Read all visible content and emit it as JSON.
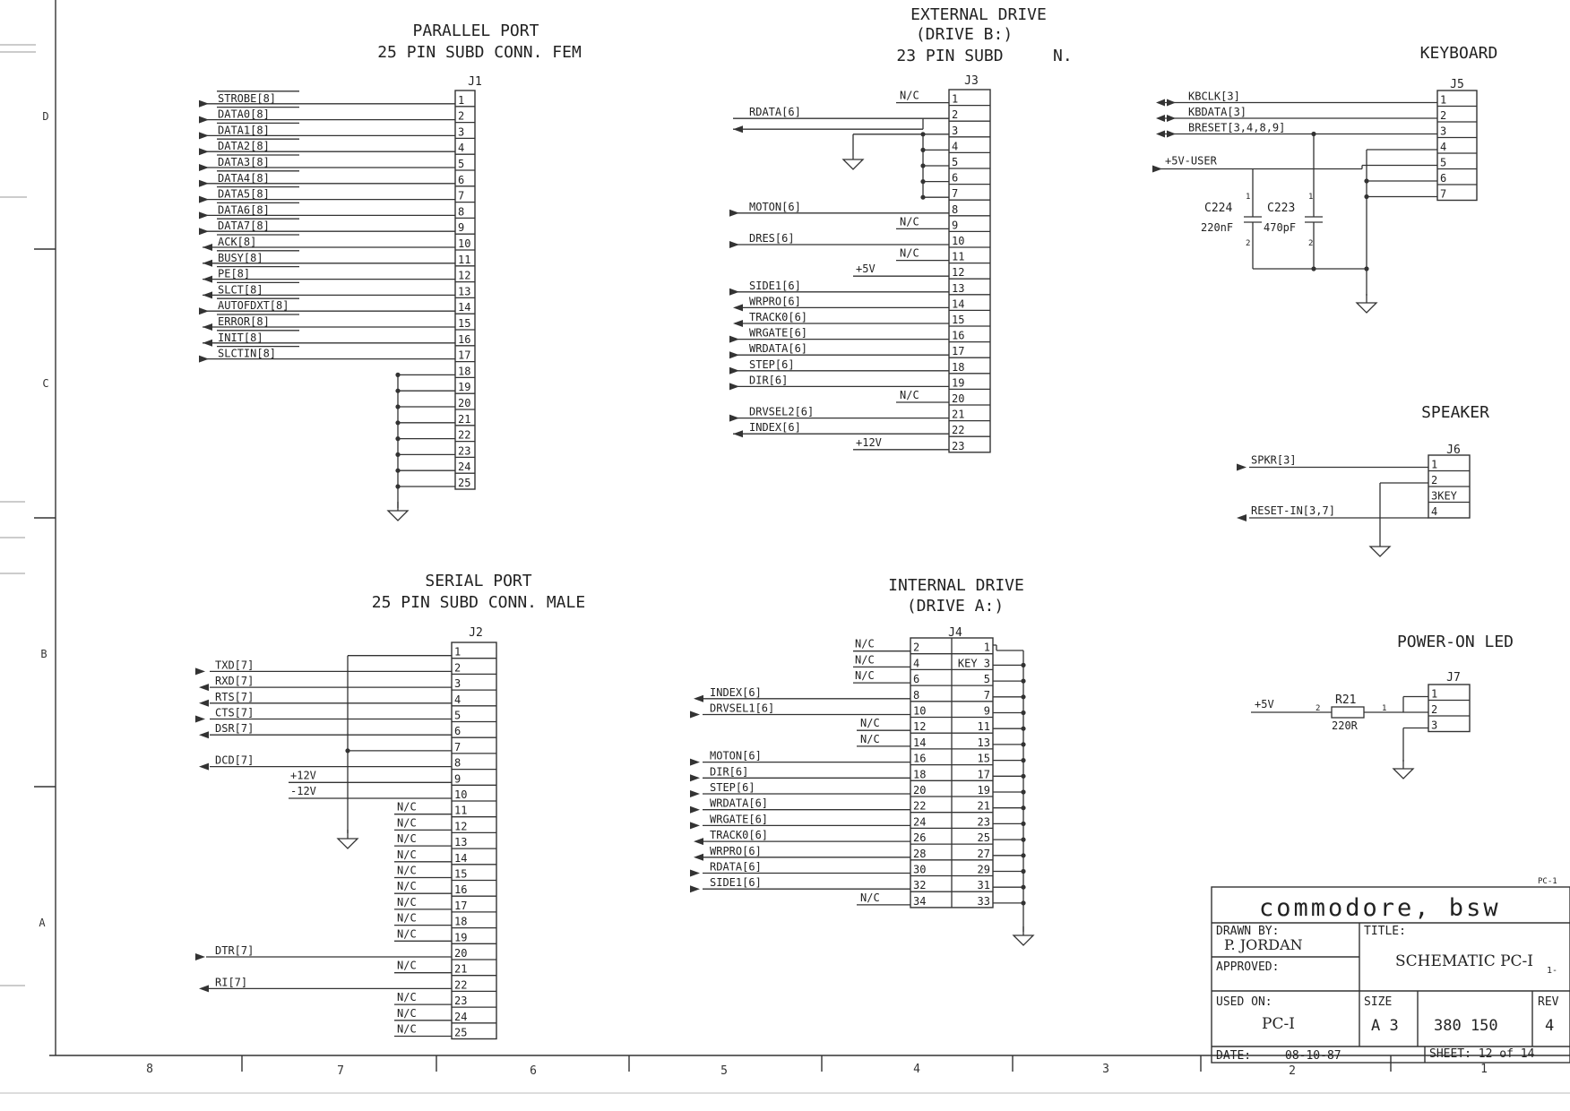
{
  "parallel": {
    "title1": "PARALLEL PORT",
    "title2": "25 PIN SUBD CONN. FEM",
    "ref": "J1",
    "signals": [
      "STROBE[8]",
      "DATA0[8]",
      "DATA1[8]",
      "DATA2[8]",
      "DATA3[8]",
      "DATA4[8]",
      "DATA5[8]",
      "DATA6[8]",
      "DATA7[8]",
      "ACK[8]",
      "BUSY[8]",
      "PE[8]",
      "SLCT[8]",
      "AUTOFDXT[8]",
      "ERROR[8]",
      "INIT[8]",
      "SLCTIN[8]"
    ],
    "pins": [
      "1",
      "2",
      "3",
      "4",
      "5",
      "6",
      "7",
      "8",
      "9",
      "10",
      "11",
      "12",
      "13",
      "14",
      "15",
      "16",
      "17",
      "18",
      "19",
      "20",
      "21",
      "22",
      "23",
      "24",
      "25"
    ]
  },
  "external": {
    "title1": "EXTERNAL DRIVE",
    "title2": "(DRIVE B:)",
    "title3": "23 PIN SUBD",
    "title3b": "N.",
    "ref": "J3",
    "pins": [
      "1",
      "2",
      "3",
      "4",
      "5",
      "6",
      "7",
      "8",
      "9",
      "10",
      "11",
      "12",
      "13",
      "14",
      "15",
      "16",
      "17",
      "18",
      "19",
      "20",
      "21",
      "22",
      "23"
    ],
    "nc": "N/C",
    "p5v": "+5V",
    "p12v": "+12V",
    "signals": [
      {
        "pin": 2,
        "label": "RDATA[6]"
      },
      {
        "pin": 8,
        "label": "MOTON[6]"
      },
      {
        "pin": 10,
        "label": "DRES[6]"
      },
      {
        "pin": 13,
        "label": "SIDE1[6]"
      },
      {
        "pin": 14,
        "label": "WRPRO[6]"
      },
      {
        "pin": 15,
        "label": "TRACK0[6]"
      },
      {
        "pin": 16,
        "label": "WRGATE[6]"
      },
      {
        "pin": 17,
        "label": "WRDATA[6]"
      },
      {
        "pin": 18,
        "label": "STEP[6]"
      },
      {
        "pin": 19,
        "label": "DIR[6]"
      },
      {
        "pin": 21,
        "label": "DRVSEL2[6]"
      },
      {
        "pin": 22,
        "label": "INDEX[6]"
      }
    ]
  },
  "keyboard": {
    "title": "KEYBOARD",
    "ref": "J5",
    "pins": [
      "1",
      "2",
      "3",
      "4",
      "5",
      "6",
      "7"
    ],
    "kbclk": "KBCLK[3]",
    "kbdata": "KBDATA[3]",
    "breset": "BRESET[3,4,8,9]",
    "usr": "+5V-USER",
    "c1_ref": "C224",
    "c1_val": "220nF",
    "c2_ref": "C223",
    "c2_val": "470pF",
    "pin_a": "1",
    "pin_b": "2"
  },
  "speaker": {
    "title": "SPEAKER",
    "ref": "J6",
    "pins": [
      "1",
      "2",
      "3KEY",
      "4"
    ],
    "spkr": "SPKR[3]",
    "reset": "RESET-IN[3,7]"
  },
  "serial": {
    "title1": "SERIAL PORT",
    "title2": "25 PIN SUBD CONN. MALE",
    "ref": "J2",
    "pins": [
      "1",
      "2",
      "3",
      "4",
      "5",
      "6",
      "7",
      "8",
      "9",
      "10",
      "11",
      "12",
      "13",
      "14",
      "15",
      "16",
      "17",
      "18",
      "19",
      "20",
      "21",
      "22",
      "23",
      "24",
      "25"
    ],
    "signals": [
      {
        "pin": 2,
        "label": "TXD[7]"
      },
      {
        "pin": 3,
        "label": "RXD[7]"
      },
      {
        "pin": 4,
        "label": "RTS[7]"
      },
      {
        "pin": 5,
        "label": "CTS[7]"
      },
      {
        "pin": 6,
        "label": "DSR[7]"
      },
      {
        "pin": 8,
        "label": "DCD[7]"
      },
      {
        "pin": 20,
        "label": "DTR[7]"
      },
      {
        "pin": 22,
        "label": "RI[7]"
      }
    ],
    "p12v": "+12V",
    "m12v": "-12V",
    "nc": "N/C"
  },
  "internal": {
    "title1": "INTERNAL DRIVE",
    "title2": "(DRIVE A:)",
    "ref": "J4",
    "left_pins": [
      "2",
      "4",
      "6",
      "8",
      "10",
      "12",
      "14",
      "16",
      "18",
      "20",
      "22",
      "24",
      "26",
      "28",
      "30",
      "32",
      "34"
    ],
    "right_pins": [
      "1",
      "KEY 3",
      "5",
      "7",
      "9",
      "11",
      "13",
      "15",
      "17",
      "19",
      "21",
      "23",
      "25",
      "27",
      "29",
      "31",
      "33"
    ],
    "nc": "N/C",
    "signals": [
      {
        "row": 3,
        "label": "INDEX[6]"
      },
      {
        "row": 4,
        "label": "DRVSEL1[6]"
      },
      {
        "row": 7,
        "label": "MOTON[6]"
      },
      {
        "row": 8,
        "label": "DIR[6]"
      },
      {
        "row": 9,
        "label": "STEP[6]"
      },
      {
        "row": 10,
        "label": "WRDATA[6]"
      },
      {
        "row": 11,
        "label": "WRGATE[6]"
      },
      {
        "row": 12,
        "label": "TRACK0[6]"
      },
      {
        "row": 13,
        "label": "WRPRO[6]"
      },
      {
        "row": 14,
        "label": "RDATA[6]"
      },
      {
        "row": 15,
        "label": "SIDE1[6]"
      }
    ]
  },
  "led": {
    "title": "POWER-ON LED",
    "ref": "J7",
    "pins": [
      "1",
      "2",
      "3"
    ],
    "p5v": "+5V",
    "r_ref": "R21",
    "r_val": "220R",
    "pin_a": "2",
    "pin_b": "1"
  },
  "titleblock": {
    "corner": "PC-1",
    "company": "commodore, bsw",
    "drawn_label": "DRAWN BY:",
    "drawn_value": "P. JORDAN",
    "title_label": "TITLE:",
    "title_value": "SCHEMATIC PC-I",
    "title_suffix": "1-",
    "approved_label": "APPROVED:",
    "used_label": "USED ON:",
    "used_value": "PC-I",
    "size_label": "SIZE",
    "size_value": "A 3",
    "number": "380 150",
    "rev_label": "REV",
    "rev_value": "4",
    "date_label": "DATE:",
    "date_value": "08-10-87",
    "sheet": "SHEET: 12 of 14"
  },
  "border": {
    "bottom": [
      "8",
      "7",
      "6",
      "5",
      "4",
      "3",
      "2",
      "1"
    ],
    "left": [
      "D",
      "C",
      "B",
      "A"
    ]
  }
}
